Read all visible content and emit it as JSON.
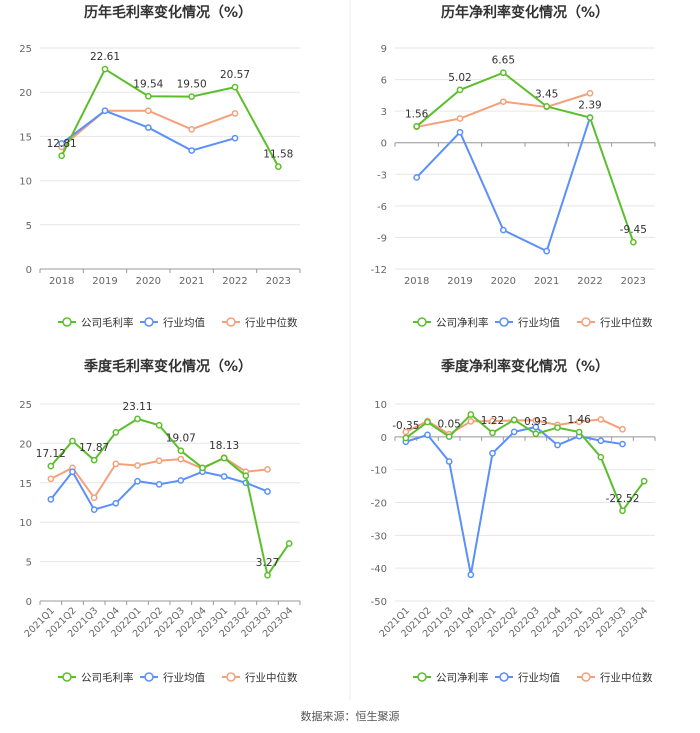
{
  "source": "数据来源：恒生聚源",
  "colors": {
    "gross": "#5bbf2c",
    "avg": "#5b8ff9",
    "median": "#f5a07a",
    "axis": "#666666",
    "grid": "#e6e6e6",
    "title": "#333333"
  },
  "legend_labels": {
    "avg": "行业均值",
    "median": "行业中位数"
  },
  "chart_data": [
    {
      "type": "line",
      "title": "历年毛利率变化情况（%）",
      "categories": [
        "2018",
        "2019",
        "2020",
        "2021",
        "2022",
        "2023"
      ],
      "ylim": [
        0,
        25
      ],
      "yticks": [
        0,
        5,
        10,
        15,
        20,
        25
      ],
      "series": [
        {
          "name": "公司毛利率",
          "key": "gross",
          "values": [
            12.81,
            22.61,
            19.54,
            19.5,
            20.57,
            11.58
          ],
          "labels": [
            "12.81",
            "22.61",
            "19.54",
            "19.50",
            "20.57",
            "11.58"
          ]
        },
        {
          "name": "行业均值",
          "key": "avg",
          "values": [
            14.2,
            17.9,
            16.0,
            13.4,
            14.8,
            null
          ]
        },
        {
          "name": "行业中位数",
          "key": "median",
          "values": [
            13.8,
            17.9,
            17.9,
            15.8,
            17.6,
            null
          ]
        }
      ]
    },
    {
      "type": "line",
      "title": "历年净利率变化情况（%）",
      "categories": [
        "2018",
        "2019",
        "2020",
        "2021",
        "2022",
        "2023"
      ],
      "ylim": [
        -12,
        9
      ],
      "yticks": [
        -12,
        -9,
        -6,
        -3,
        0,
        3,
        6,
        9
      ],
      "series": [
        {
          "name": "公司净利率",
          "key": "gross",
          "values": [
            1.56,
            5.02,
            6.65,
            3.45,
            2.39,
            -9.45
          ],
          "labels": [
            "1.56",
            "5.02",
            "6.65",
            "3.45",
            "2.39",
            "-9.45"
          ]
        },
        {
          "name": "行业均值",
          "key": "avg",
          "values": [
            -3.3,
            1.0,
            -8.3,
            -10.3,
            2.4,
            null
          ]
        },
        {
          "name": "行业中位数",
          "key": "median",
          "values": [
            1.5,
            2.3,
            3.9,
            3.4,
            4.7,
            null
          ]
        }
      ]
    },
    {
      "type": "line",
      "title": "季度毛利率变化情况（%）",
      "categories": [
        "2021Q1",
        "2021Q2",
        "2021Q3",
        "2021Q4",
        "2022Q1",
        "2022Q2",
        "2022Q3",
        "2022Q4",
        "2023Q1",
        "2023Q2",
        "2023Q3",
        "2023Q4"
      ],
      "ylim": [
        0,
        25
      ],
      "yticks": [
        0,
        5,
        10,
        15,
        20,
        25
      ],
      "series": [
        {
          "name": "公司毛利率",
          "key": "gross",
          "values": [
            17.12,
            20.3,
            17.87,
            21.4,
            23.11,
            22.3,
            19.07,
            16.9,
            18.13,
            15.9,
            3.27,
            7.3
          ],
          "labels": [
            "17.12",
            null,
            "17.87",
            null,
            "23.11",
            null,
            "19.07",
            null,
            "18.13",
            null,
            "3.27",
            null
          ]
        },
        {
          "name": "行业均值",
          "key": "avg",
          "values": [
            12.9,
            16.4,
            11.6,
            12.4,
            15.2,
            14.8,
            15.3,
            16.4,
            15.8,
            15.0,
            13.9,
            null
          ]
        },
        {
          "name": "行业中位数",
          "key": "median",
          "values": [
            15.5,
            16.9,
            13.1,
            17.4,
            17.2,
            17.8,
            18.0,
            16.8,
            18.2,
            16.4,
            16.7,
            null
          ]
        }
      ]
    },
    {
      "type": "line",
      "title": "季度净利率变化情况（%）",
      "categories": [
        "2021Q1",
        "2021Q2",
        "2021Q3",
        "2021Q4",
        "2022Q1",
        "2022Q2",
        "2022Q3",
        "2022Q4",
        "2023Q1",
        "2023Q2",
        "2023Q3",
        "2023Q4"
      ],
      "ylim": [
        -50,
        10
      ],
      "yticks": [
        -50,
        -40,
        -30,
        -20,
        -10,
        0,
        10
      ],
      "series": [
        {
          "name": "公司净利率",
          "key": "gross",
          "values": [
            -0.35,
            4.5,
            0.05,
            6.8,
            1.22,
            5.2,
            0.93,
            2.8,
            1.46,
            -6.2,
            -22.52,
            -13.5
          ],
          "labels": [
            "-0.35",
            null,
            "0.05",
            null,
            "1.22",
            null,
            "0.93",
            null,
            "1.46",
            null,
            "-22.52",
            null
          ]
        },
        {
          "name": "行业均值",
          "key": "avg",
          "values": [
            -1.5,
            0.6,
            -7.5,
            -42.0,
            -5.0,
            1.5,
            3.0,
            -2.5,
            0.2,
            -1.2,
            -2.2,
            null
          ]
        },
        {
          "name": "行业中位数",
          "key": "median",
          "values": [
            1.5,
            4.8,
            0.8,
            4.7,
            4.8,
            5.0,
            5.0,
            3.6,
            4.6,
            5.3,
            2.3,
            null
          ]
        }
      ]
    }
  ]
}
